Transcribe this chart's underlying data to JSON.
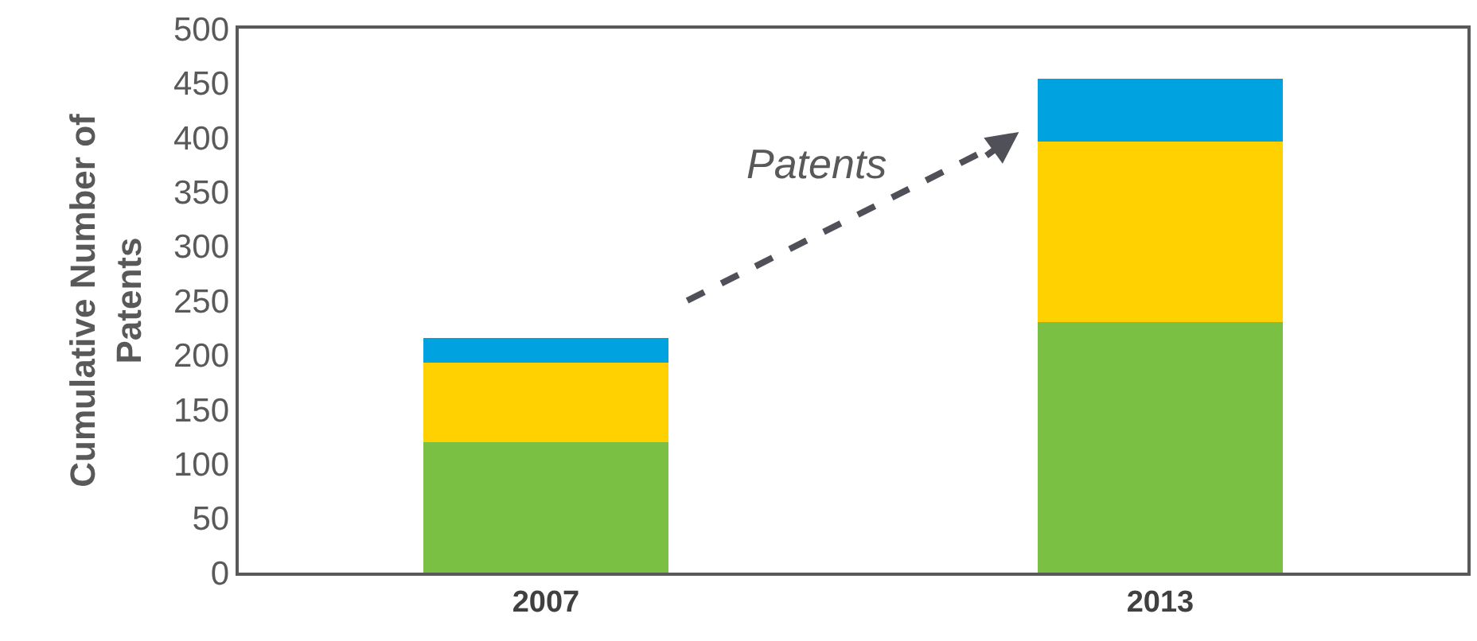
{
  "chart_data": {
    "type": "bar",
    "stacked": true,
    "ylabel": "Cumulative Number of Patents",
    "categories": [
      "2007",
      "2013"
    ],
    "series": [
      {
        "color": "#7ac143",
        "values": [
          120,
          230
        ]
      },
      {
        "color": "#ffd100",
        "values": [
          73,
          166
        ]
      },
      {
        "color": "#00a3e0",
        "values": [
          23,
          58
        ]
      }
    ],
    "ylim": [
      0,
      500
    ],
    "yticks": [
      0,
      50,
      100,
      150,
      200,
      250,
      300,
      350,
      400,
      450,
      500
    ],
    "annotations": [
      "Patents"
    ]
  }
}
